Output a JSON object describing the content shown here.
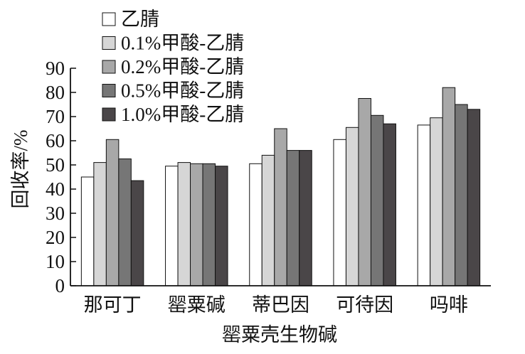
{
  "chart_data": {
    "type": "bar",
    "title": "",
    "xlabel": "罂粟壳生物碱",
    "ylabel": "回收率/%",
    "ylim": [
      0,
      90
    ],
    "yticks": [
      0,
      10,
      20,
      30,
      40,
      50,
      60,
      70,
      80,
      90
    ],
    "grid": false,
    "legend_position": "top-left",
    "categories": [
      "那可丁",
      "罂粟碱",
      "蒂巴因",
      "可待因",
      "吗啡"
    ],
    "series": [
      {
        "name": "乙腈",
        "color": "#ffffff",
        "values": [
          45,
          49.5,
          50.5,
          60.5,
          66.5
        ]
      },
      {
        "name": "0.1%甲酸-乙腈",
        "color": "#d6d6d6",
        "values": [
          51,
          51,
          54,
          65.5,
          69.5
        ]
      },
      {
        "name": "0.2%甲酸-乙腈",
        "color": "#a8a8a8",
        "values": [
          60.5,
          50.5,
          65,
          77.5,
          82
        ]
      },
      {
        "name": "0.5%甲酸-乙腈",
        "color": "#767676",
        "values": [
          52.5,
          50.5,
          56,
          70.5,
          75
        ]
      },
      {
        "name": "1.0%甲酸-乙腈",
        "color": "#4a4648",
        "values": [
          43.5,
          49.5,
          56,
          67,
          73
        ]
      }
    ]
  }
}
